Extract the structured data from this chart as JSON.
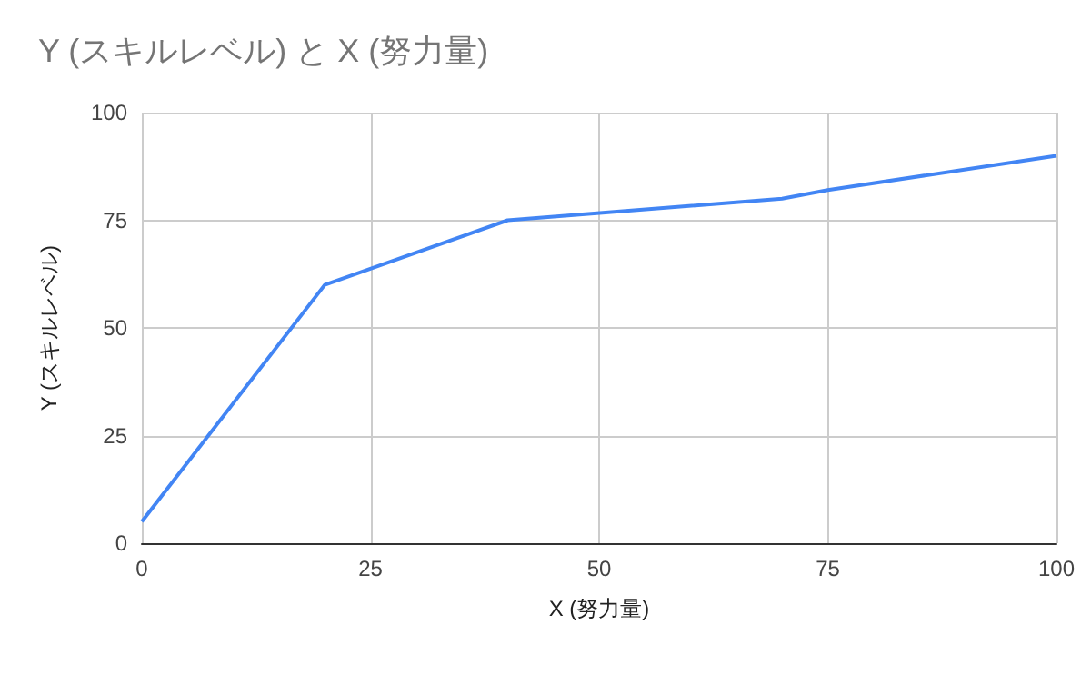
{
  "chart_data": {
    "type": "line",
    "title": "Y (スキルレベル) と X (努力量)",
    "xlabel": "X (努力量)",
    "ylabel": "Y (スキルレベル)",
    "x": [
      0,
      20,
      40,
      70,
      75,
      100
    ],
    "series": [
      {
        "color": "#4285f4",
        "values": [
          5,
          60,
          75,
          80,
          82,
          90
        ]
      }
    ],
    "xlim": [
      0,
      100
    ],
    "xticks": [
      0,
      25,
      50,
      75,
      100
    ],
    "ylim": [
      0,
      100
    ],
    "yticks": [
      0,
      25,
      50,
      75,
      100
    ],
    "grid": true,
    "marker": "none",
    "line_style": "solid"
  }
}
